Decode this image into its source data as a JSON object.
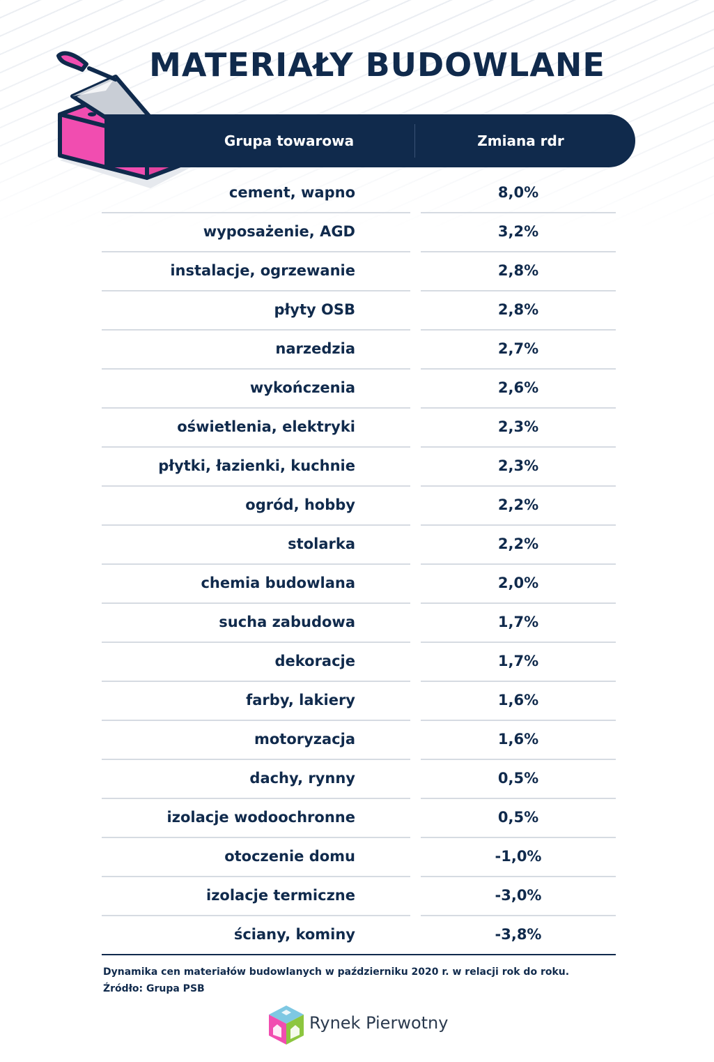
{
  "title": "MATERIAŁY BUDOWLANE",
  "table": {
    "header": {
      "group": "Grupa towarowa",
      "change": "Zmiana rdr"
    },
    "rows": [
      {
        "group": "cement, wapno",
        "change": "8,0%"
      },
      {
        "group": "wyposażenie, AGD",
        "change": "3,2%"
      },
      {
        "group": "instalacje, ogrzewanie",
        "change": "2,8%"
      },
      {
        "group": "płyty OSB",
        "change": "2,8%"
      },
      {
        "group": "narzedzia",
        "change": "2,7%"
      },
      {
        "group": "wykończenia",
        "change": "2,6%"
      },
      {
        "group": "oświetlenia, elektryki",
        "change": "2,3%"
      },
      {
        "group": "płytki, łazienki, kuchnie",
        "change": "2,3%"
      },
      {
        "group": "ogród, hobby",
        "change": "2,2%"
      },
      {
        "group": "stolarka",
        "change": "2,2%"
      },
      {
        "group": "chemia budowlana",
        "change": "2,0%"
      },
      {
        "group": "sucha zabudowa",
        "change": "1,7%"
      },
      {
        "group": "dekoracje",
        "change": "1,7%"
      },
      {
        "group": "farby, lakiery",
        "change": "1,6%"
      },
      {
        "group": "motoryzacja",
        "change": "1,6%"
      },
      {
        "group": "dachy, rynny",
        "change": "0,5%"
      },
      {
        "group": "izolacje wodoochronne",
        "change": "0,5%"
      },
      {
        "group": "otoczenie domu",
        "change": "-1,0%"
      },
      {
        "group": "izolacje termiczne",
        "change": "-3,0%"
      },
      {
        "group": "ściany, kominy",
        "change": "-3,8%"
      }
    ]
  },
  "footnote": {
    "description": "Dynamika cen materiałów budowlanych w październiku 2020 r. w relacji rok do roku.",
    "source": "Źródło: Grupa PSB"
  },
  "brand": {
    "name": "Rynek Pierwotny"
  },
  "colors": {
    "navy": "#102a4c",
    "pink": "#f14db0",
    "divider": "#d6dbe2"
  },
  "icons": {
    "illustration": "brick-trowel-icon",
    "logo": "rynek-pierwotny-logo-icon"
  }
}
